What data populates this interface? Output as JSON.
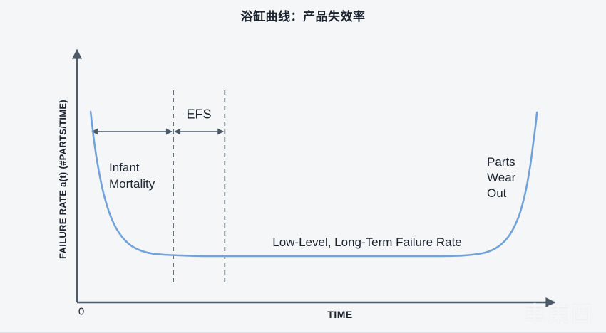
{
  "chart": {
    "title": "浴缸曲线：产品失效率",
    "ylabel": "FAILURE RATE a(t) (#PARTS/TIME)",
    "xlabel": "TIME",
    "origin_label": "0",
    "annotations": {
      "efs": "EFS",
      "infant_mortality": "Infant Mortality",
      "parts_wear_out": "Parts Wear Out",
      "low_level": "Low-Level, Long-Term Failure Rate"
    },
    "watermark": "車東西",
    "colors": {
      "bg": "#f5f6f8",
      "curve": "#72a2d9",
      "axis": "#4d5a68",
      "dashed": "#4a5560",
      "text": "#1c2430"
    }
  },
  "chart_data": {
    "type": "line",
    "title": "浴缸曲线：产品失效率",
    "xlabel": "TIME",
    "ylabel": "FAILURE RATE a(t) (#PARTS/TIME)",
    "x_range": [
      0,
      1
    ],
    "y_range": [
      0,
      1
    ],
    "grid": false,
    "legend": false,
    "series": [
      {
        "name": "failure-rate-bathtub-curve",
        "x": [
          0.028,
          0.035,
          0.044,
          0.054,
          0.066,
          0.079,
          0.094,
          0.111,
          0.131,
          0.153,
          0.179,
          0.216,
          0.26,
          0.326,
          0.399,
          0.472,
          0.545,
          0.619,
          0.692,
          0.751,
          0.795,
          0.839,
          0.868,
          0.89,
          0.908,
          0.921,
          0.931,
          0.938,
          0.943,
          0.946
        ],
        "y": [
          0.724,
          0.614,
          0.508,
          0.419,
          0.343,
          0.287,
          0.246,
          0.216,
          0.197,
          0.186,
          0.181,
          0.178,
          0.176,
          0.176,
          0.176,
          0.176,
          0.176,
          0.176,
          0.176,
          0.176,
          0.178,
          0.189,
          0.214,
          0.257,
          0.324,
          0.408,
          0.505,
          0.6,
          0.67,
          0.722
        ]
      }
    ],
    "region_boundaries_x": [
      0.198,
      0.304
    ],
    "span_arrows": [
      {
        "from": 0.028,
        "to": 0.198,
        "label": "Infant Mortality"
      },
      {
        "from": 0.198,
        "to": 0.304,
        "label": "EFS"
      }
    ],
    "annotations": [
      "EFS",
      "Infant Mortality",
      "Parts Wear Out",
      "Low-Level, Long-Term Failure Rate"
    ]
  }
}
